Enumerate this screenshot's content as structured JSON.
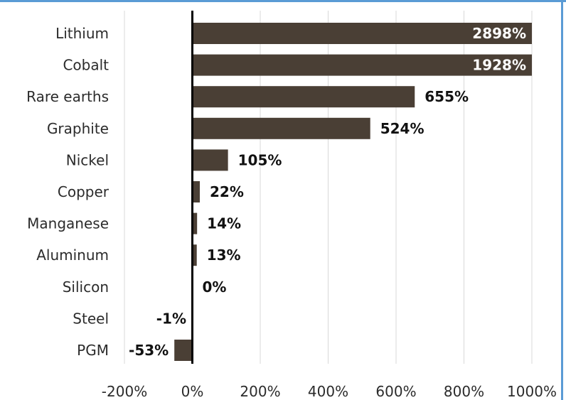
{
  "colors": {
    "bar": "#4a3f35",
    "frame": "#5a9bd5",
    "grid": "#d9d9d9",
    "axis": "#000000",
    "label_inside": "#ffffff",
    "label_outside": "#111111"
  },
  "chart_data": {
    "type": "bar",
    "orientation": "horizontal",
    "title": "",
    "xlabel": "",
    "ylabel": "",
    "categories": [
      "Lithium",
      "Cobalt",
      "Rare earths",
      "Graphite",
      "Nickel",
      "Copper",
      "Manganese",
      "Aluminum",
      "Silicon",
      "Steel",
      "PGM"
    ],
    "values": [
      2898,
      1928,
      655,
      524,
      105,
      22,
      14,
      13,
      0,
      -1,
      -53
    ],
    "value_labels": [
      "2898%",
      "1928%",
      "655%",
      "524%",
      "105%",
      "22%",
      "14%",
      "13%",
      "0%",
      "-1%",
      "-53%"
    ],
    "xlim": [
      -200,
      1000
    ],
    "x_ticks": [
      -200,
      0,
      200,
      400,
      600,
      800,
      1000
    ],
    "x_tick_labels": [
      "-200%",
      "0%",
      "200%",
      "400%",
      "600%",
      "800%",
      "1000%"
    ],
    "bars_clipped_at_axis_max": true,
    "grid": "vertical",
    "legend": "none"
  }
}
